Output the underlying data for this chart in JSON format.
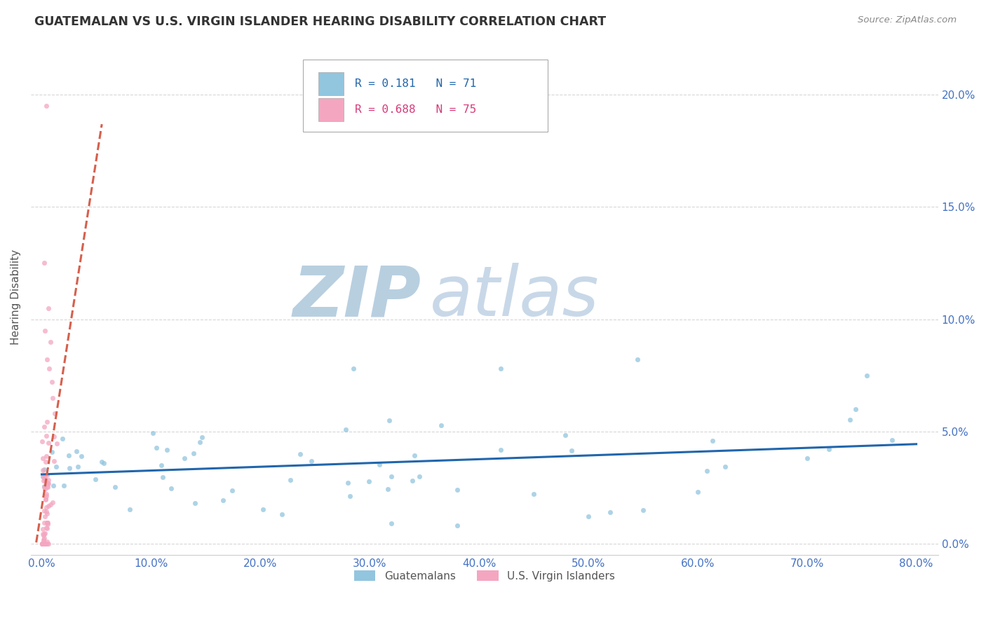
{
  "title": "GUATEMALAN VS U.S. VIRGIN ISLANDER HEARING DISABILITY CORRELATION CHART",
  "source": "Source: ZipAtlas.com",
  "xlabel_guatemalans": "Guatemalans",
  "xlabel_virgin": "U.S. Virgin Islanders",
  "ylabel": "Hearing Disability",
  "R_guatemalan": 0.181,
  "N_guatemalan": 71,
  "R_virgin": 0.688,
  "N_virgin": 75,
  "color_guatemalan": "#92c5de",
  "color_virgin": "#f4a6c0",
  "trend_color_guatemalan": "#2166ac",
  "trend_color_virgin": "#d6604d",
  "xlim_min": -0.01,
  "xlim_max": 0.82,
  "ylim_min": -0.005,
  "ylim_max": 0.225,
  "xticks": [
    0.0,
    0.1,
    0.2,
    0.3,
    0.4,
    0.5,
    0.6,
    0.7,
    0.8
  ],
  "yticks": [
    0.0,
    0.05,
    0.1,
    0.15,
    0.2
  ],
  "background_color": "#ffffff",
  "grid_color": "#cccccc",
  "watermark_zip": "ZIP",
  "watermark_atlas": "atlas",
  "watermark_color_zip": "#b8cfe0",
  "watermark_color_atlas": "#c8d8e8",
  "title_color": "#333333",
  "axis_label_color": "#555555",
  "tick_color": "#4472c4",
  "legend_border_color": "#aaaaaa"
}
